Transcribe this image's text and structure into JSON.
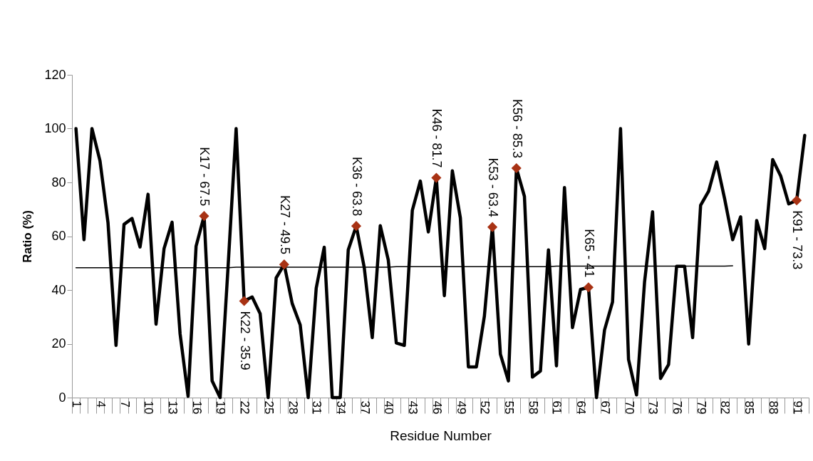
{
  "chart_data": {
    "type": "line",
    "xlabel": "Residue Number",
    "ylabel": "Ratio (%)",
    "categories": [
      "1",
      null,
      null,
      "4",
      null,
      null,
      "7",
      null,
      null,
      "10",
      null,
      null,
      "13",
      null,
      null,
      "16",
      null,
      null,
      "19",
      null,
      null,
      "22",
      null,
      null,
      "25",
      null,
      null,
      "28",
      null,
      null,
      "31",
      null,
      null,
      "34",
      null,
      null,
      "37",
      null,
      null,
      "40",
      null,
      null,
      "43",
      null,
      null,
      "46",
      null,
      null,
      "49",
      null,
      null,
      "52",
      null,
      null,
      "55",
      null,
      null,
      "58",
      null,
      null,
      "61",
      null,
      null,
      "64",
      null,
      null,
      "67",
      null,
      null,
      "70",
      null,
      null,
      "73",
      null,
      null,
      "76",
      null,
      null,
      "79",
      null,
      null,
      "82",
      null,
      null,
      "85",
      null,
      null,
      "88",
      null,
      null,
      "91",
      null
    ],
    "ylim": [
      0,
      120
    ],
    "yticks": [
      0,
      20,
      40,
      60,
      80,
      100,
      120
    ],
    "grid": false,
    "series": [
      {
        "color": "#000000",
        "values": [
          100,
          58.7,
          100,
          88,
          65,
          19.4,
          64.4,
          66.6,
          56,
          75.6,
          27.3,
          55.4,
          65.2,
          23.7,
          0.5,
          56.3,
          67.5,
          6.2,
          0,
          49,
          100,
          35.9,
          37.4,
          31.2,
          0,
          44.5,
          49.5,
          35,
          27,
          0,
          40.7,
          55.9,
          0,
          0,
          54.9,
          63.8,
          48.3,
          22.3,
          63.9,
          51.1,
          20.3,
          19.4,
          69.6,
          80.5,
          61.6,
          81.7,
          37.9,
          84.3,
          66.8,
          11.4,
          11.4,
          30.3,
          63.4,
          16.1,
          6.2,
          85.3,
          74.8,
          7.6,
          9.9,
          54.9,
          11.8,
          78.1,
          26,
          40.2,
          41,
          0,
          25.1,
          35.5,
          100,
          14.2,
          1,
          43,
          69.1,
          7.1,
          12.3,
          48.8,
          48.8,
          22.3,
          71.5,
          76.7,
          87.6,
          73.9,
          58.7,
          67.2,
          19.9,
          65.8,
          55.4,
          88.5,
          82.4,
          72,
          73.3,
          97.5
        ]
      },
      {
        "type": "line",
        "color": "#000000",
        "values": [
          48.3,
          48.3,
          48.3,
          48.3,
          48.3,
          48.3,
          48.3,
          48.3,
          48.3,
          48.3,
          48.3,
          48.3,
          48.3,
          48.3,
          48.3,
          48.3,
          48.3,
          48.3,
          48.3,
          48.3,
          48.5,
          48.5,
          48.5,
          48.5,
          48.5,
          48.5,
          48.5,
          48.5,
          48.5,
          48.5,
          48.5,
          48.5,
          48.5,
          48.5,
          48.5,
          48.5,
          48.5,
          48.5,
          48.5,
          48.5,
          48.7,
          48.7,
          48.7,
          48.7,
          48.7,
          48.7,
          48.7,
          48.7,
          48.7,
          48.7,
          48.7,
          48.7,
          48.7,
          48.7,
          48.7,
          48.7,
          48.7,
          48.7,
          48.7,
          48.7,
          48.9,
          48.9,
          48.9,
          48.9,
          48.9,
          48.9,
          48.9,
          48.9,
          48.9,
          48.9,
          48.9,
          48.9,
          48.9,
          48.9,
          48.9,
          48.9,
          48.9,
          48.9,
          48.9,
          48.9,
          48.9,
          48.9,
          49,
          null,
          null,
          null,
          null,
          null,
          null,
          null,
          null,
          null
        ]
      },
      {
        "type": "scatter",
        "color": "#a83214",
        "marker": "diamond",
        "values": [
          null,
          null,
          null,
          null,
          null,
          null,
          null,
          null,
          null,
          null,
          null,
          null,
          null,
          null,
          null,
          null,
          67.5,
          null,
          null,
          null,
          null,
          35.9,
          null,
          null,
          null,
          null,
          49.5,
          null,
          null,
          null,
          null,
          null,
          null,
          null,
          null,
          63.8,
          null,
          null,
          null,
          null,
          null,
          null,
          null,
          null,
          null,
          81.7,
          null,
          null,
          null,
          null,
          null,
          null,
          63.4,
          null,
          null,
          85.3,
          null,
          null,
          null,
          null,
          null,
          null,
          null,
          null,
          41,
          null,
          null,
          null,
          null,
          null,
          null,
          null,
          null,
          null,
          null,
          null,
          null,
          null,
          null,
          null,
          null,
          null,
          null,
          null,
          null,
          null,
          null,
          null,
          null,
          null,
          73.3,
          null
        ],
        "value_labels": [
          null,
          null,
          null,
          null,
          null,
          null,
          null,
          null,
          null,
          null,
          null,
          null,
          null,
          null,
          null,
          null,
          "K17 - 67.5",
          null,
          null,
          null,
          null,
          "K22 - 35.9",
          null,
          null,
          null,
          null,
          "K27 - 49.5",
          null,
          null,
          null,
          null,
          null,
          null,
          null,
          null,
          "K36 - 63.8",
          null,
          null,
          null,
          null,
          null,
          null,
          null,
          null,
          null,
          "K46 - 81.7",
          null,
          null,
          null,
          null,
          null,
          null,
          "K53 - 63.4",
          null,
          null,
          "K56 - 85.3",
          null,
          null,
          null,
          null,
          null,
          null,
          null,
          null,
          "K65 - 41",
          null,
          null,
          null,
          null,
          null,
          null,
          null,
          null,
          null,
          null,
          null,
          null,
          null,
          null,
          null,
          null,
          null,
          null,
          null,
          null,
          null,
          null,
          null,
          null,
          null,
          "K91 - 73.3",
          null
        ]
      }
    ]
  }
}
